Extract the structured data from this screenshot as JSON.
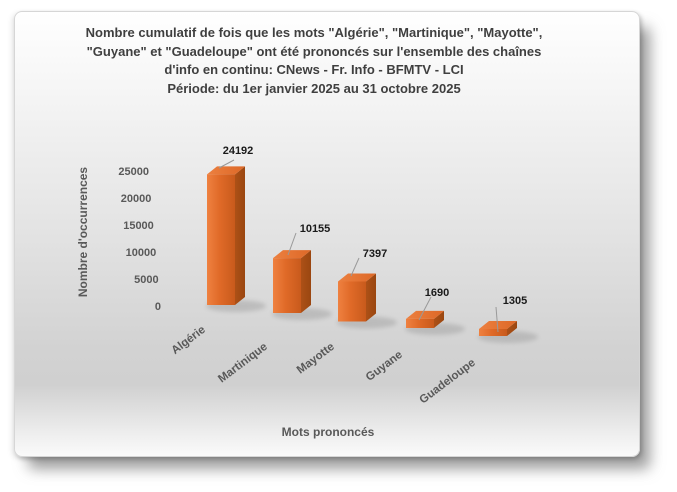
{
  "chart_data": {
    "type": "bar",
    "projection": "3d",
    "title_lines": [
      "Nombre cumulatif de fois que les mots \"Algérie\", \"Martinique\", \"Mayotte\",",
      "\"Guyane\" et \"Guadeloupe\" ont été prononcés sur l'ensemble des chaînes",
      "d'info en continu: CNews - Fr. Info - BFMTV - LCI",
      "Période: du 1er janvier 2025 au 31 octobre 2025"
    ],
    "categories": [
      "Algérie",
      "Martinique",
      "Mayotte",
      "Guyane",
      "Guadeloupe"
    ],
    "values": [
      24192,
      10155,
      7397,
      1690,
      1305
    ],
    "data_labels": [
      "24192",
      "10155",
      "7397",
      "1690",
      "1305"
    ],
    "xlabel": "Mots prononcés",
    "ylabel": "Nombre d'occurrences",
    "ylim": [
      0,
      25000
    ],
    "yticks": [
      0,
      5000,
      10000,
      15000,
      20000,
      25000
    ],
    "grid": false,
    "legend": "none",
    "colors": {
      "bar_front_light": "#ef8140",
      "bar_front": "#e06a28",
      "bar_front_dark": "#c85a1c",
      "bar_side": "#ad5117",
      "bar_side_dark": "#9a4610",
      "bar_top_light": "#ec8040",
      "bar_top": "#dd6827",
      "title_text": "#3f3f3f",
      "axis_text": "#595959",
      "data_label_text": "#1a1a1a",
      "leader_line": "#999999",
      "shadow": "#9b9b9b"
    }
  }
}
